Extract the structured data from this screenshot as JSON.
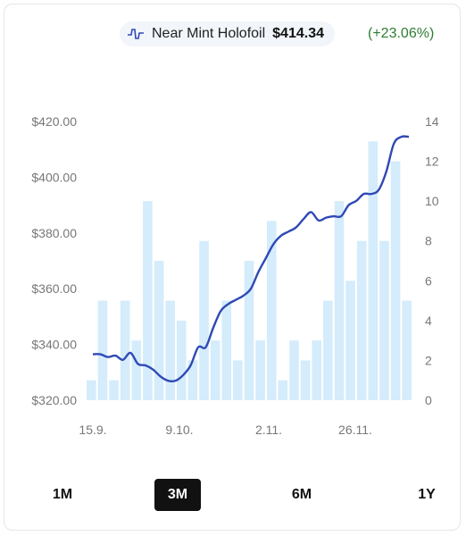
{
  "legend": {
    "icon": "price-line-icon",
    "label": "Near Mint Holofoil",
    "price": "$414.34",
    "change": "(+23.06%)"
  },
  "colors": {
    "line": "#2f49b5",
    "bar": "#d4ecfb",
    "change": "#2e7d32",
    "active_range": "#111111"
  },
  "ranges": [
    "1M",
    "3M",
    "6M",
    "1Y"
  ],
  "active_range": "3M",
  "chart_data": {
    "type": "line",
    "y_left": {
      "ticks": [
        "$420.00",
        "$400.00",
        "$380.00",
        "$360.00",
        "$340.00",
        "$320.00"
      ],
      "range": [
        320,
        420
      ]
    },
    "y_right": {
      "ticks": [
        "14",
        "12",
        "10",
        "8",
        "6",
        "4",
        "2",
        "0"
      ],
      "range": [
        0,
        14
      ]
    },
    "x_ticks": [
      "15.9.",
      "9.10.",
      "2.11.",
      "26.11."
    ],
    "series": [
      {
        "kind": "line",
        "axis": "left",
        "values": [
          336.5,
          336.5,
          335.5,
          336,
          334.5,
          337,
          333,
          332.5,
          331,
          328.5,
          327,
          327,
          329,
          332.5,
          339,
          339,
          346,
          352,
          354.5,
          356,
          357.5,
          360,
          366,
          371,
          376,
          379,
          380.5,
          382,
          385,
          387.5,
          384.5,
          385.5,
          386,
          386,
          390,
          391.5,
          394,
          394,
          395.5,
          402,
          412,
          414.5,
          414.5
        ]
      },
      {
        "kind": "bar",
        "axis": "right",
        "values": [
          1,
          5,
          1,
          5,
          3,
          10,
          7,
          5,
          4,
          2,
          8,
          3,
          5,
          2,
          7,
          3,
          9,
          1,
          3,
          2,
          3,
          5,
          10,
          6,
          8,
          13,
          8,
          12,
          5
        ]
      }
    ]
  }
}
